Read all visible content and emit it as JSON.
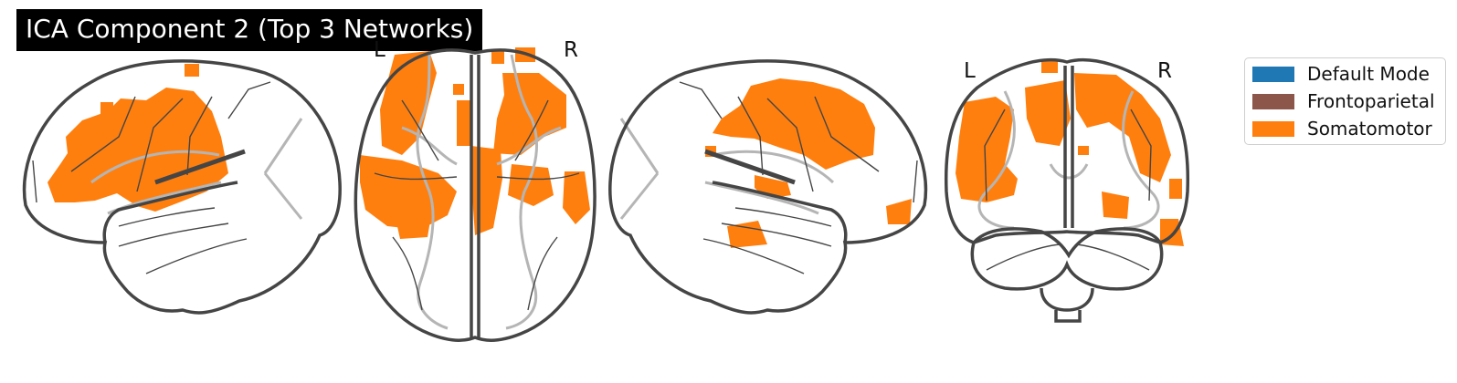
{
  "figure": {
    "title": "ICA Component 2 (Top 3 Networks)",
    "orientation_labels": {
      "axial_left": "L",
      "axial_right": "R",
      "coronal_left": "L",
      "coronal_right": "R"
    },
    "views": [
      "left-sagittal",
      "axial",
      "right-sagittal",
      "coronal"
    ],
    "legend": [
      {
        "label": "Default Mode",
        "color": "#1f77b4"
      },
      {
        "label": "Frontoparietal",
        "color": "#8c564b"
      },
      {
        "label": "Somatomotor",
        "color": "#ff7f0e"
      }
    ],
    "overlay_color": "#ff7f0e",
    "outline_color": "#454545"
  }
}
